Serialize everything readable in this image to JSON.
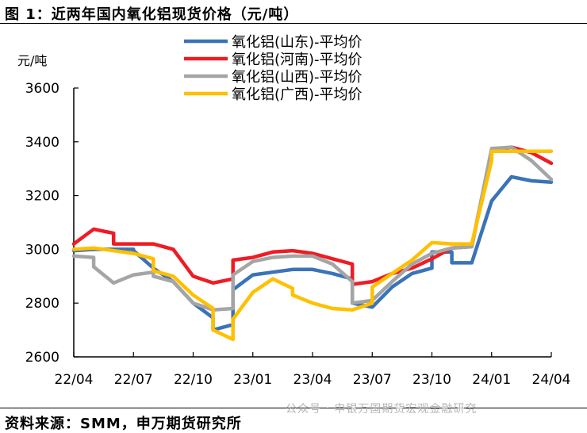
{
  "header": {
    "title": "图 1：近两年国内氧化铝现货价格（元/吨）"
  },
  "footer": {
    "source": "资料来源：SMM，申万期货研究所",
    "watermark": "公众号 · 申银万国期货宏观金融研究"
  },
  "chart_data": {
    "type": "line",
    "title": "图 1：近两年国内氧化铝现货价格（元/吨）",
    "ylabel": "元/吨",
    "ylim": [
      2600,
      3600
    ],
    "yticks": [
      2600,
      2800,
      3000,
      3200,
      3400,
      3600
    ],
    "xticks": [
      "22/04",
      "22/07",
      "22/10",
      "23/01",
      "23/04",
      "23/07",
      "23/10",
      "24/01",
      "24/04"
    ],
    "grid": false,
    "legend_position": "top",
    "series": [
      {
        "name": "氧化铝(山东)-平均价",
        "color": "#3a73b8",
        "points": [
          [
            "22/04",
            2995
          ],
          [
            "22/05",
            3000
          ],
          [
            "22/06",
            3000
          ],
          [
            "22/07",
            3000
          ],
          [
            "22/07",
            2995
          ],
          [
            "22/08",
            2930
          ],
          [
            "22/09",
            2880
          ],
          [
            "22/10",
            2800
          ],
          [
            "22/11",
            2745
          ],
          [
            "22/11",
            2700
          ],
          [
            "22/12",
            2720
          ],
          [
            "22/12",
            2850
          ],
          [
            "23/01",
            2905
          ],
          [
            "23/02",
            2915
          ],
          [
            "23/03",
            2925
          ],
          [
            "23/04",
            2925
          ],
          [
            "23/05",
            2910
          ],
          [
            "23/06",
            2890
          ],
          [
            "23/06",
            2800
          ],
          [
            "23/07",
            2785
          ],
          [
            "23/08",
            2860
          ],
          [
            "23/09",
            2910
          ],
          [
            "23/10",
            2930
          ],
          [
            "23/10",
            2990
          ],
          [
            "23/11",
            2990
          ],
          [
            "23/11",
            2950
          ],
          [
            "23/12",
            2950
          ],
          [
            "24/01",
            3180
          ],
          [
            "24/02",
            3270
          ],
          [
            "24/03",
            3255
          ],
          [
            "24/04",
            3250
          ]
        ]
      },
      {
        "name": "氧化铝(河南)-平均价",
        "color": "#ee1c25",
        "points": [
          [
            "22/04",
            3020
          ],
          [
            "22/05",
            3075
          ],
          [
            "22/06",
            3060
          ],
          [
            "22/06",
            3020
          ],
          [
            "22/07",
            3020
          ],
          [
            "22/08",
            3020
          ],
          [
            "22/09",
            3000
          ],
          [
            "22/10",
            2900
          ],
          [
            "22/11",
            2875
          ],
          [
            "22/12",
            2890
          ],
          [
            "22/12",
            2960
          ],
          [
            "23/01",
            2970
          ],
          [
            "23/02",
            2990
          ],
          [
            "23/03",
            2995
          ],
          [
            "23/04",
            2985
          ],
          [
            "23/05",
            2965
          ],
          [
            "23/06",
            2945
          ],
          [
            "23/06",
            2870
          ],
          [
            "23/07",
            2880
          ],
          [
            "23/08",
            2910
          ],
          [
            "23/09",
            2930
          ],
          [
            "23/10",
            2965
          ],
          [
            "23/11",
            3005
          ],
          [
            "23/12",
            3010
          ],
          [
            "24/01",
            3370
          ],
          [
            "24/02",
            3380
          ],
          [
            "24/03",
            3360
          ],
          [
            "24/04",
            3320
          ]
        ]
      },
      {
        "name": "氧化铝(山西)-平均价",
        "color": "#a5a5a5",
        "points": [
          [
            "22/04",
            2975
          ],
          [
            "22/05",
            2970
          ],
          [
            "22/05",
            2935
          ],
          [
            "22/06",
            2875
          ],
          [
            "22/06",
            2875
          ],
          [
            "22/07",
            2905
          ],
          [
            "22/08",
            2915
          ],
          [
            "22/08",
            2900
          ],
          [
            "22/09",
            2880
          ],
          [
            "22/10",
            2800
          ],
          [
            "22/11",
            2775
          ],
          [
            "22/12",
            2780
          ],
          [
            "22/12",
            2905
          ],
          [
            "23/01",
            2955
          ],
          [
            "23/02",
            2970
          ],
          [
            "23/03",
            2975
          ],
          [
            "23/04",
            2975
          ],
          [
            "23/05",
            2945
          ],
          [
            "23/06",
            2880
          ],
          [
            "23/06",
            2800
          ],
          [
            "23/07",
            2810
          ],
          [
            "23/08",
            2880
          ],
          [
            "23/09",
            2945
          ],
          [
            "23/10",
            2985
          ],
          [
            "23/11",
            3005
          ],
          [
            "23/12",
            3010
          ],
          [
            "24/01",
            3375
          ],
          [
            "24/02",
            3380
          ],
          [
            "24/03",
            3330
          ],
          [
            "24/04",
            3260
          ]
        ]
      },
      {
        "name": "氧化铝(广西)-平均价",
        "color": "#ffc000",
        "points": [
          [
            "22/04",
            3000
          ],
          [
            "22/05",
            3005
          ],
          [
            "22/06",
            2995
          ],
          [
            "22/07",
            2985
          ],
          [
            "22/08",
            2965
          ],
          [
            "22/08",
            2920
          ],
          [
            "22/09",
            2900
          ],
          [
            "22/10",
            2830
          ],
          [
            "22/11",
            2780
          ],
          [
            "22/11",
            2700
          ],
          [
            "22/12",
            2665
          ],
          [
            "22/12",
            2740
          ],
          [
            "23/01",
            2840
          ],
          [
            "23/02",
            2890
          ],
          [
            "23/03",
            2855
          ],
          [
            "23/03",
            2830
          ],
          [
            "23/04",
            2800
          ],
          [
            "23/05",
            2780
          ],
          [
            "23/06",
            2775
          ],
          [
            "23/07",
            2800
          ],
          [
            "23/07",
            2860
          ],
          [
            "23/08",
            2910
          ],
          [
            "23/09",
            2960
          ],
          [
            "23/10",
            3025
          ],
          [
            "23/11",
            3020
          ],
          [
            "23/12",
            3020
          ],
          [
            "24/01",
            3330
          ],
          [
            "24/01",
            3365
          ],
          [
            "24/02",
            3365
          ],
          [
            "24/03",
            3365
          ],
          [
            "24/04",
            3365
          ]
        ]
      }
    ]
  }
}
